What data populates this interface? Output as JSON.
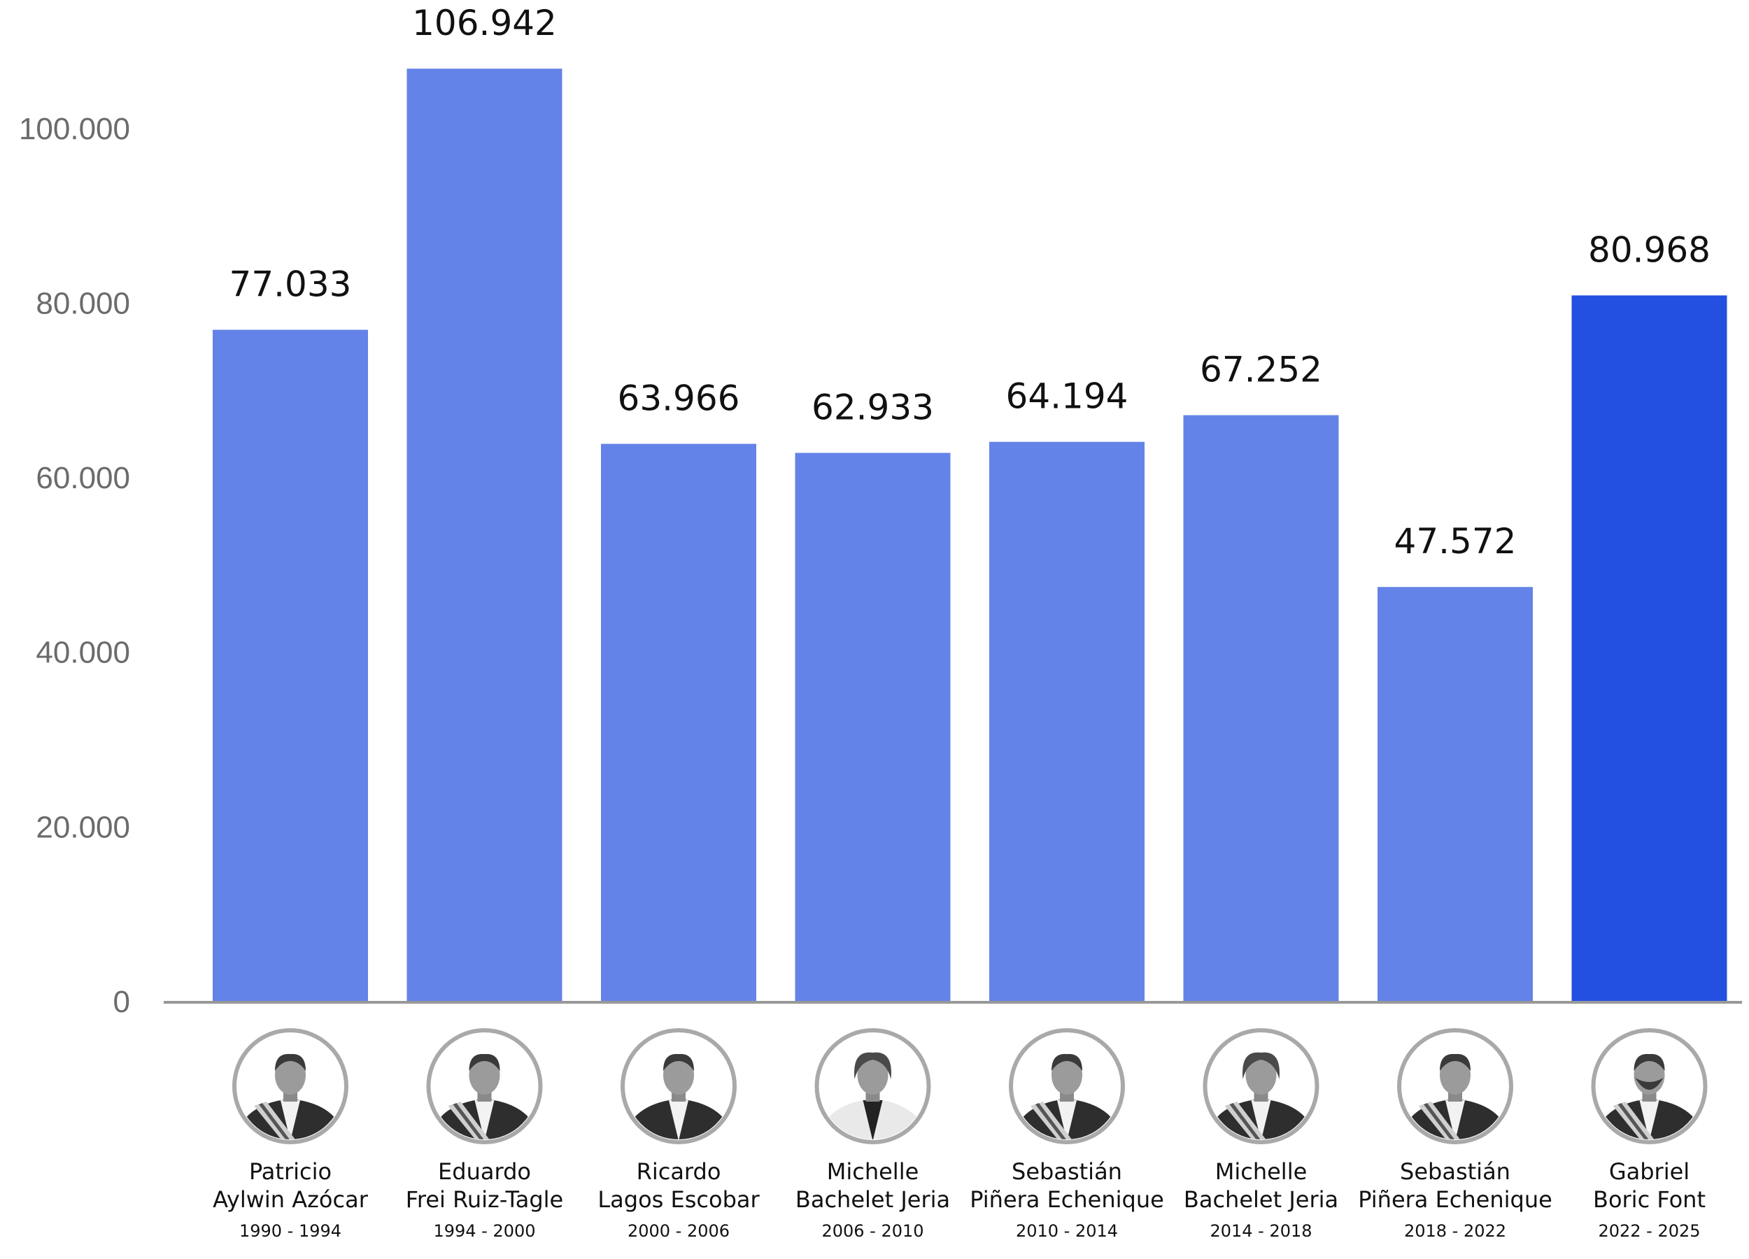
{
  "chart_data": {
    "type": "bar",
    "categories": [
      {
        "name_line1": "Patricio",
        "name_line2": "Aylwin Azócar",
        "years": "1990 - 1994",
        "portrait": "portrait-man-presidential-sash-icon"
      },
      {
        "name_line1": "Eduardo",
        "name_line2": "Frei Ruiz-Tagle",
        "years": "1994 - 2000",
        "portrait": "portrait-man-presidential-sash-icon"
      },
      {
        "name_line1": "Ricardo",
        "name_line2": "Lagos Escobar",
        "years": "2000 - 2006",
        "portrait": "portrait-man-suit-icon"
      },
      {
        "name_line1": "Michelle",
        "name_line2": "Bachelet Jeria",
        "years": "2006 - 2010",
        "portrait": "portrait-woman-white-jacket-icon"
      },
      {
        "name_line1": "Sebastián",
        "name_line2": "Piñera Echenique",
        "years": "2010 - 2014",
        "portrait": "portrait-man-presidential-sash-icon"
      },
      {
        "name_line1": "Michelle",
        "name_line2": "Bachelet Jeria",
        "years": "2014 - 2018",
        "portrait": "portrait-woman-presidential-sash-icon"
      },
      {
        "name_line1": "Sebastián",
        "name_line2": "Piñera Echenique",
        "years": "2018 - 2022",
        "portrait": "portrait-man-presidential-sash-icon"
      },
      {
        "name_line1": "Gabriel",
        "name_line2": "Boric Font",
        "years": "2022 - 2025",
        "portrait": "portrait-bearded-man-presidential-sash-icon"
      }
    ],
    "values": [
      77033,
      106942,
      63966,
      62933,
      64194,
      67252,
      47572,
      80968
    ],
    "value_labels": [
      "77.033",
      "106.942",
      "63.966",
      "62.933",
      "64.194",
      "67.252",
      "47.572",
      "80.968"
    ],
    "ylim": [
      0,
      110000
    ],
    "yticks": [
      0,
      20000,
      40000,
      60000,
      80000,
      100000
    ],
    "ytick_labels": [
      "0",
      "20.000",
      "40.000",
      "60.000",
      "80.000",
      "100.000"
    ],
    "title": "",
    "xlabel": "",
    "ylabel": "",
    "grid": false,
    "colors": {
      "bar": "#6483e8",
      "highlight_bar": "#2350e0",
      "axis": "#999999",
      "portrait_ring": "#a9a9a9"
    },
    "highlight_index": 7
  }
}
